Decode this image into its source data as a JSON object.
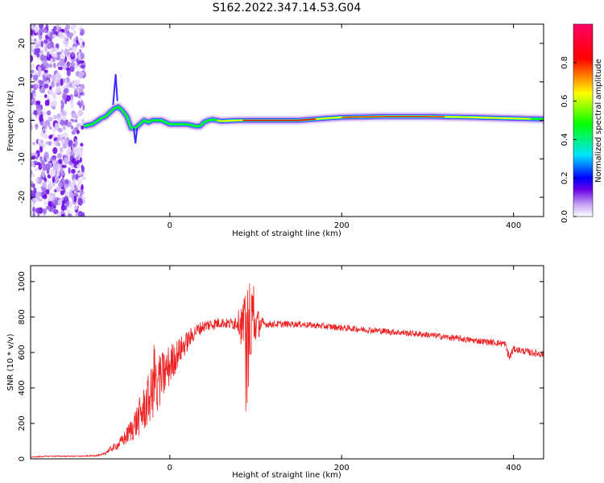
{
  "figure_title": "S162.2022.347.14.53.G04",
  "colors": {
    "snr_line": "#ee2222",
    "axis": "#000000",
    "colormap": [
      "#ffffff",
      "#c8a8f5",
      "#6a00e6",
      "#0000ff",
      "#00e5ff",
      "#00ff00",
      "#ffff00",
      "#ff0000",
      "#ff0066"
    ]
  },
  "chart_data": [
    {
      "type": "heatmap",
      "xlabel": "Height of straight line (km)",
      "ylabel": "Frequency (Hz)",
      "xlim": [
        -162,
        435
      ],
      "ylim": [
        -25,
        25
      ],
      "xticks": [
        0,
        200,
        400
      ],
      "yticks": [
        -20,
        -10,
        0,
        10,
        20
      ],
      "ridge": {
        "x": [
          -100,
          -90,
          -80,
          -75,
          -70,
          -65,
          -60,
          -55,
          -50,
          -45,
          -40,
          -35,
          -30,
          -25,
          -20,
          -10,
          0,
          10,
          20,
          30,
          35,
          40,
          45,
          50,
          60,
          80,
          100,
          150,
          180,
          200,
          250,
          300,
          350,
          400,
          435
        ],
        "y": [
          -1.5,
          -1,
          0.5,
          1,
          2,
          3,
          3.5,
          2.5,
          1,
          -2,
          -2,
          -1,
          0,
          -0.5,
          0,
          0,
          -1,
          -1,
          -1,
          -1.5,
          -1.5,
          -0.5,
          0,
          0.2,
          -0.2,
          0,
          0,
          0,
          0.5,
          0.8,
          1,
          1,
          0.8,
          0.5,
          0.3
        ]
      },
      "noise_region_x": [
        -162,
        -100
      ],
      "colorbar": {
        "label": "Normalized spectral amplitude",
        "range": [
          0,
          1
        ],
        "ticks": [
          "0.0",
          "0.2",
          "0.4",
          "0.6",
          "0.8"
        ]
      }
    },
    {
      "type": "line",
      "xlabel": "Height of straight line (km)",
      "ylabel": "SNR (10 * v/v)",
      "xlim": [
        -162,
        435
      ],
      "ylim": [
        0,
        1090
      ],
      "xticks": [
        0,
        200,
        400
      ],
      "yticks": [
        0,
        200,
        400,
        600,
        800,
        1000
      ],
      "series": [
        {
          "x": [
            -162,
            -140,
            -120,
            -100,
            -80,
            -70,
            -60,
            -50,
            -40,
            -30,
            -20,
            -10,
            0,
            10,
            20,
            30,
            40,
            50,
            60,
            70,
            80,
            90,
            100,
            110,
            120,
            150,
            200,
            250,
            300,
            350,
            390,
            395,
            400,
            420,
            435
          ],
          "y": [
            10,
            15,
            15,
            15,
            20,
            50,
            80,
            130,
            200,
            280,
            380,
            450,
            530,
            600,
            660,
            720,
            750,
            760,
            770,
            760,
            780,
            700,
            760,
            760,
            760,
            760,
            740,
            720,
            700,
            670,
            650,
            570,
            620,
            600,
            590
          ],
          "noise": [
            3,
            3,
            3,
            3,
            5,
            15,
            25,
            50,
            90,
            130,
            160,
            150,
            120,
            80,
            60,
            40,
            35,
            35,
            30,
            30,
            60,
            250,
            110,
            20,
            20,
            18,
            18,
            18,
            18,
            18,
            18,
            30,
            18,
            20,
            20
          ]
        }
      ]
    }
  ]
}
